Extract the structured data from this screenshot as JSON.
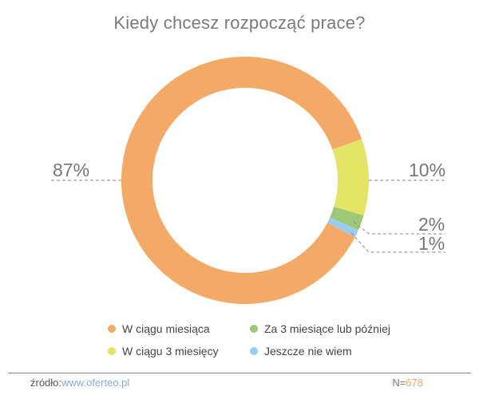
{
  "title": "Kiedy chcesz rozpocząć prace?",
  "chart_data": {
    "type": "pie",
    "subtype": "donut",
    "title": "Kiedy chcesz rozpocząć prace?",
    "categories": [
      "W ciągu miesiąca",
      "W ciągu 3 miesięcy",
      "Za 3 miesiące lub później",
      "Jeszcze nie wiem"
    ],
    "values": [
      87,
      10,
      2,
      1
    ],
    "labels": [
      "87%",
      "10%",
      "2%",
      "1%"
    ],
    "colors": [
      "#f2aa66",
      "#e2e566",
      "#9dc878",
      "#9ccaf0"
    ],
    "legend_position": "bottom"
  },
  "labels": {
    "p87": "87%",
    "p10": "10%",
    "p2": "2%",
    "p1": "1%"
  },
  "legend": [
    {
      "label": "W ciągu miesiąca",
      "color": "#f2aa66"
    },
    {
      "label": "W ciągu 3 miesięcy",
      "color": "#e2e566"
    },
    {
      "label": "Za 3 miesiące lub później",
      "color": "#9dc878"
    },
    {
      "label": "Jeszcze nie wiem",
      "color": "#9ccaf0"
    }
  ],
  "footer": {
    "source_label": "źródło:",
    "source_link": "www.oferteo.pl",
    "n_label": "N=",
    "n_value": "678"
  }
}
